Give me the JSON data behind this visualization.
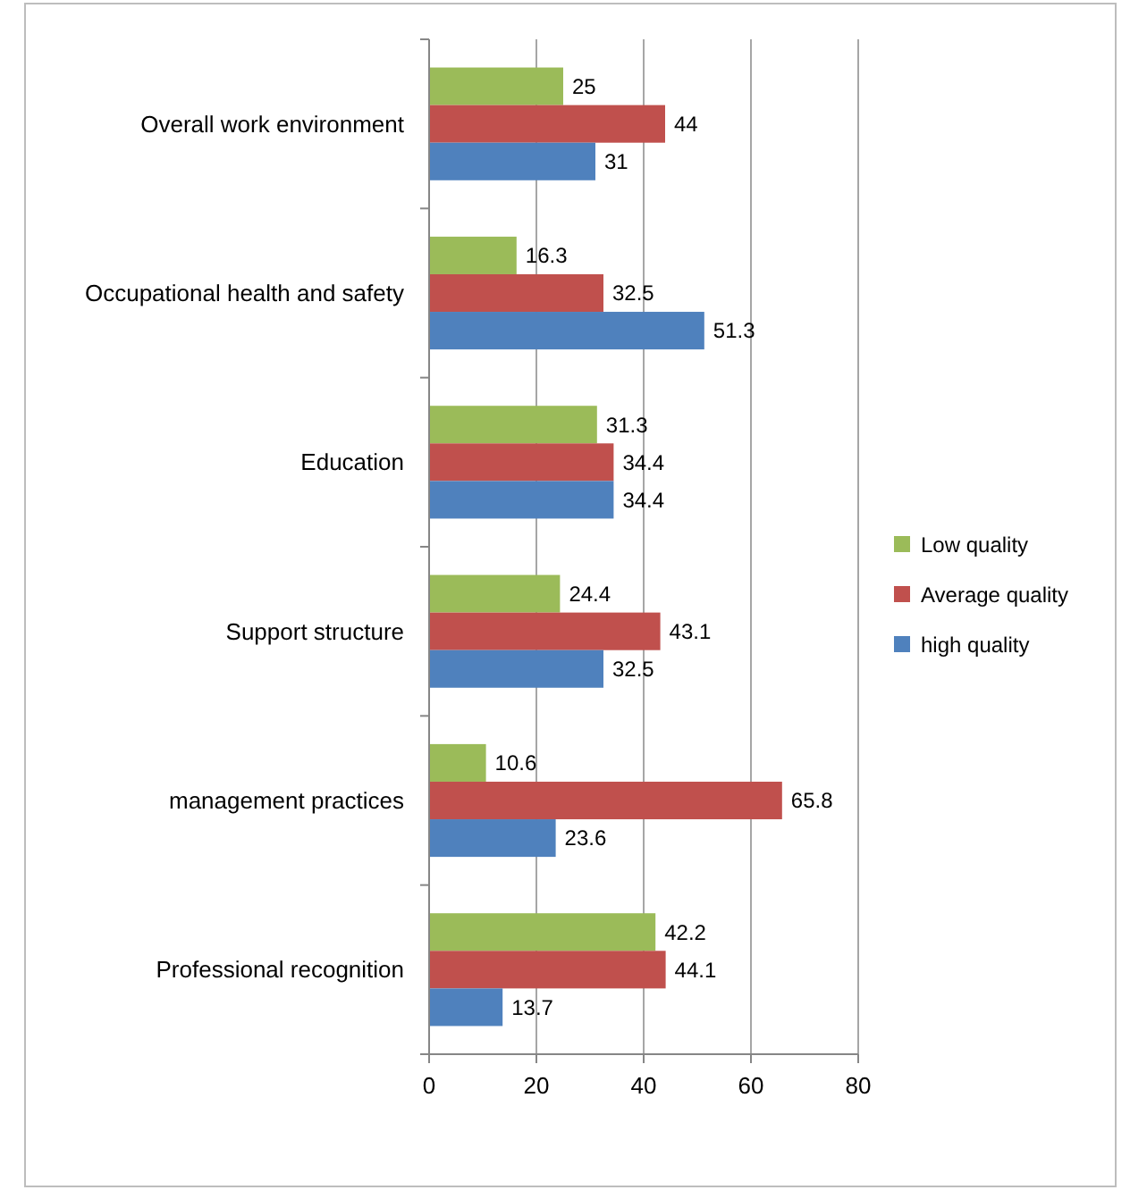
{
  "chart_data": {
    "type": "bar",
    "orientation": "horizontal",
    "categories": [
      "Overall work environment",
      "Occupational health and safety",
      "Education",
      "Support structure",
      "management practices",
      "Professional recognition"
    ],
    "series": [
      {
        "name": "Low quality",
        "color": "#9bbb59",
        "values": [
          25,
          16.3,
          31.3,
          24.4,
          10.6,
          42.2
        ]
      },
      {
        "name": "Average quality",
        "color": "#c0504d",
        "values": [
          44,
          32.5,
          34.4,
          43.1,
          65.8,
          44.1
        ]
      },
      {
        "name": "high quality",
        "color": "#4f81bd",
        "values": [
          31,
          51.3,
          34.4,
          32.5,
          23.6,
          13.7
        ]
      }
    ],
    "xlim": [
      0,
      80
    ],
    "xticks": [
      0,
      20,
      40,
      60,
      80
    ],
    "grid": "x",
    "legend": "right",
    "data_labels": true
  }
}
